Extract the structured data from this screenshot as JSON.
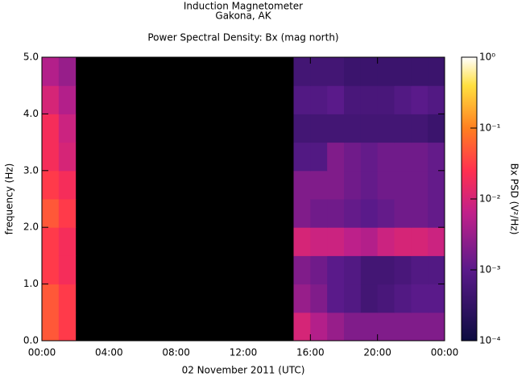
{
  "chart_data": {
    "type": "spectrogram",
    "title": "Induction Magnetometer",
    "subtitle": "Gakona, AK",
    "plot_title": "Power Spectral Density: Bx (mag north)",
    "xlabel": "02 November 2011 (UTC)",
    "ylabel": "frequency (Hz)",
    "colorbar_label": "Bx PSD (V²/Hz)",
    "xbins": [
      0,
      1,
      2,
      3,
      4,
      5,
      6,
      7,
      8,
      9,
      10,
      11,
      12,
      13,
      14,
      15,
      16,
      17,
      18,
      19,
      20,
      21,
      22,
      23,
      24
    ],
    "ybins": [
      0,
      0.5,
      1,
      1.5,
      2,
      2.5,
      3,
      3.5,
      4,
      4.5,
      5
    ],
    "z": [
      [
        0.05,
        0.03,
        null,
        null,
        null,
        null,
        null,
        null,
        null,
        null,
        null,
        null,
        null,
        null,
        null,
        0.01,
        0.005,
        0.003,
        0.002,
        0.002,
        0.002,
        0.002,
        0.002,
        0.002
      ],
      [
        0.05,
        0.03,
        null,
        null,
        null,
        null,
        null,
        null,
        null,
        null,
        null,
        null,
        null,
        null,
        null,
        0.003,
        0.002,
        0.001,
        0.0008,
        0.0005,
        0.0006,
        0.0008,
        0.001,
        0.001
      ],
      [
        0.03,
        0.02,
        null,
        null,
        null,
        null,
        null,
        null,
        null,
        null,
        null,
        null,
        null,
        null,
        null,
        0.002,
        0.0015,
        0.001,
        0.0008,
        0.0005,
        0.0005,
        0.0006,
        0.0008,
        0.0008
      ],
      [
        0.03,
        0.02,
        null,
        null,
        null,
        null,
        null,
        null,
        null,
        null,
        null,
        null,
        null,
        null,
        null,
        0.01,
        0.008,
        0.008,
        0.006,
        0.005,
        0.008,
        0.01,
        0.01,
        0.008
      ],
      [
        0.05,
        0.03,
        null,
        null,
        null,
        null,
        null,
        null,
        null,
        null,
        null,
        null,
        null,
        null,
        null,
        0.002,
        0.0015,
        0.0015,
        0.0012,
        0.001,
        0.0012,
        0.0015,
        0.0015,
        0.0012
      ],
      [
        0.03,
        0.02,
        null,
        null,
        null,
        null,
        null,
        null,
        null,
        null,
        null,
        null,
        null,
        null,
        null,
        0.002,
        0.002,
        0.002,
        0.0015,
        0.0012,
        0.0015,
        0.0015,
        0.0015,
        0.0012
      ],
      [
        0.02,
        0.01,
        null,
        null,
        null,
        null,
        null,
        null,
        null,
        null,
        null,
        null,
        null,
        null,
        null,
        0.0008,
        0.0008,
        0.002,
        0.0015,
        0.0012,
        0.0015,
        0.0015,
        0.0015,
        0.0012
      ],
      [
        0.02,
        0.008,
        null,
        null,
        null,
        null,
        null,
        null,
        null,
        null,
        null,
        null,
        null,
        null,
        null,
        0.0005,
        0.0005,
        0.0005,
        0.0005,
        0.0005,
        0.0005,
        0.0005,
        0.0005,
        0.0004
      ],
      [
        0.01,
        0.005,
        null,
        null,
        null,
        null,
        null,
        null,
        null,
        null,
        null,
        null,
        null,
        null,
        null,
        0.0008,
        0.0008,
        0.001,
        0.0006,
        0.0006,
        0.0006,
        0.0008,
        0.001,
        0.0008
      ],
      [
        0.005,
        0.003,
        null,
        null,
        null,
        null,
        null,
        null,
        null,
        null,
        null,
        null,
        null,
        null,
        null,
        0.0005,
        0.0005,
        0.0005,
        0.0004,
        0.0004,
        0.0004,
        0.0004,
        0.0004,
        0.0004
      ]
    ],
    "xlim": [
      0,
      24
    ],
    "xticks": [
      {
        "value": 0,
        "label": "00:00"
      },
      {
        "value": 4,
        "label": "04:00"
      },
      {
        "value": 8,
        "label": "08:00"
      },
      {
        "value": 12,
        "label": "12:00"
      },
      {
        "value": 16,
        "label": "16:00"
      },
      {
        "value": 20,
        "label": "20:00"
      },
      {
        "value": 24,
        "label": "00:00"
      }
    ],
    "ylim": [
      0,
      5
    ],
    "yticks": [
      {
        "value": 0,
        "label": "0.0"
      },
      {
        "value": 1,
        "label": "1.0"
      },
      {
        "value": 2,
        "label": "2.0"
      },
      {
        "value": 3,
        "label": "3.0"
      },
      {
        "value": 4,
        "label": "4.0"
      },
      {
        "value": 5,
        "label": "5.0"
      }
    ],
    "zlim": [
      0.0001,
      1
    ],
    "zscale": "log",
    "zticks": [
      {
        "value": 0.0001,
        "label": "10⁻⁴"
      },
      {
        "value": 0.001,
        "label": "10⁻³"
      },
      {
        "value": 0.01,
        "label": "10⁻²"
      },
      {
        "value": 0.1,
        "label": "10⁻¹"
      },
      {
        "value": 1,
        "label": "10⁰"
      }
    ]
  }
}
